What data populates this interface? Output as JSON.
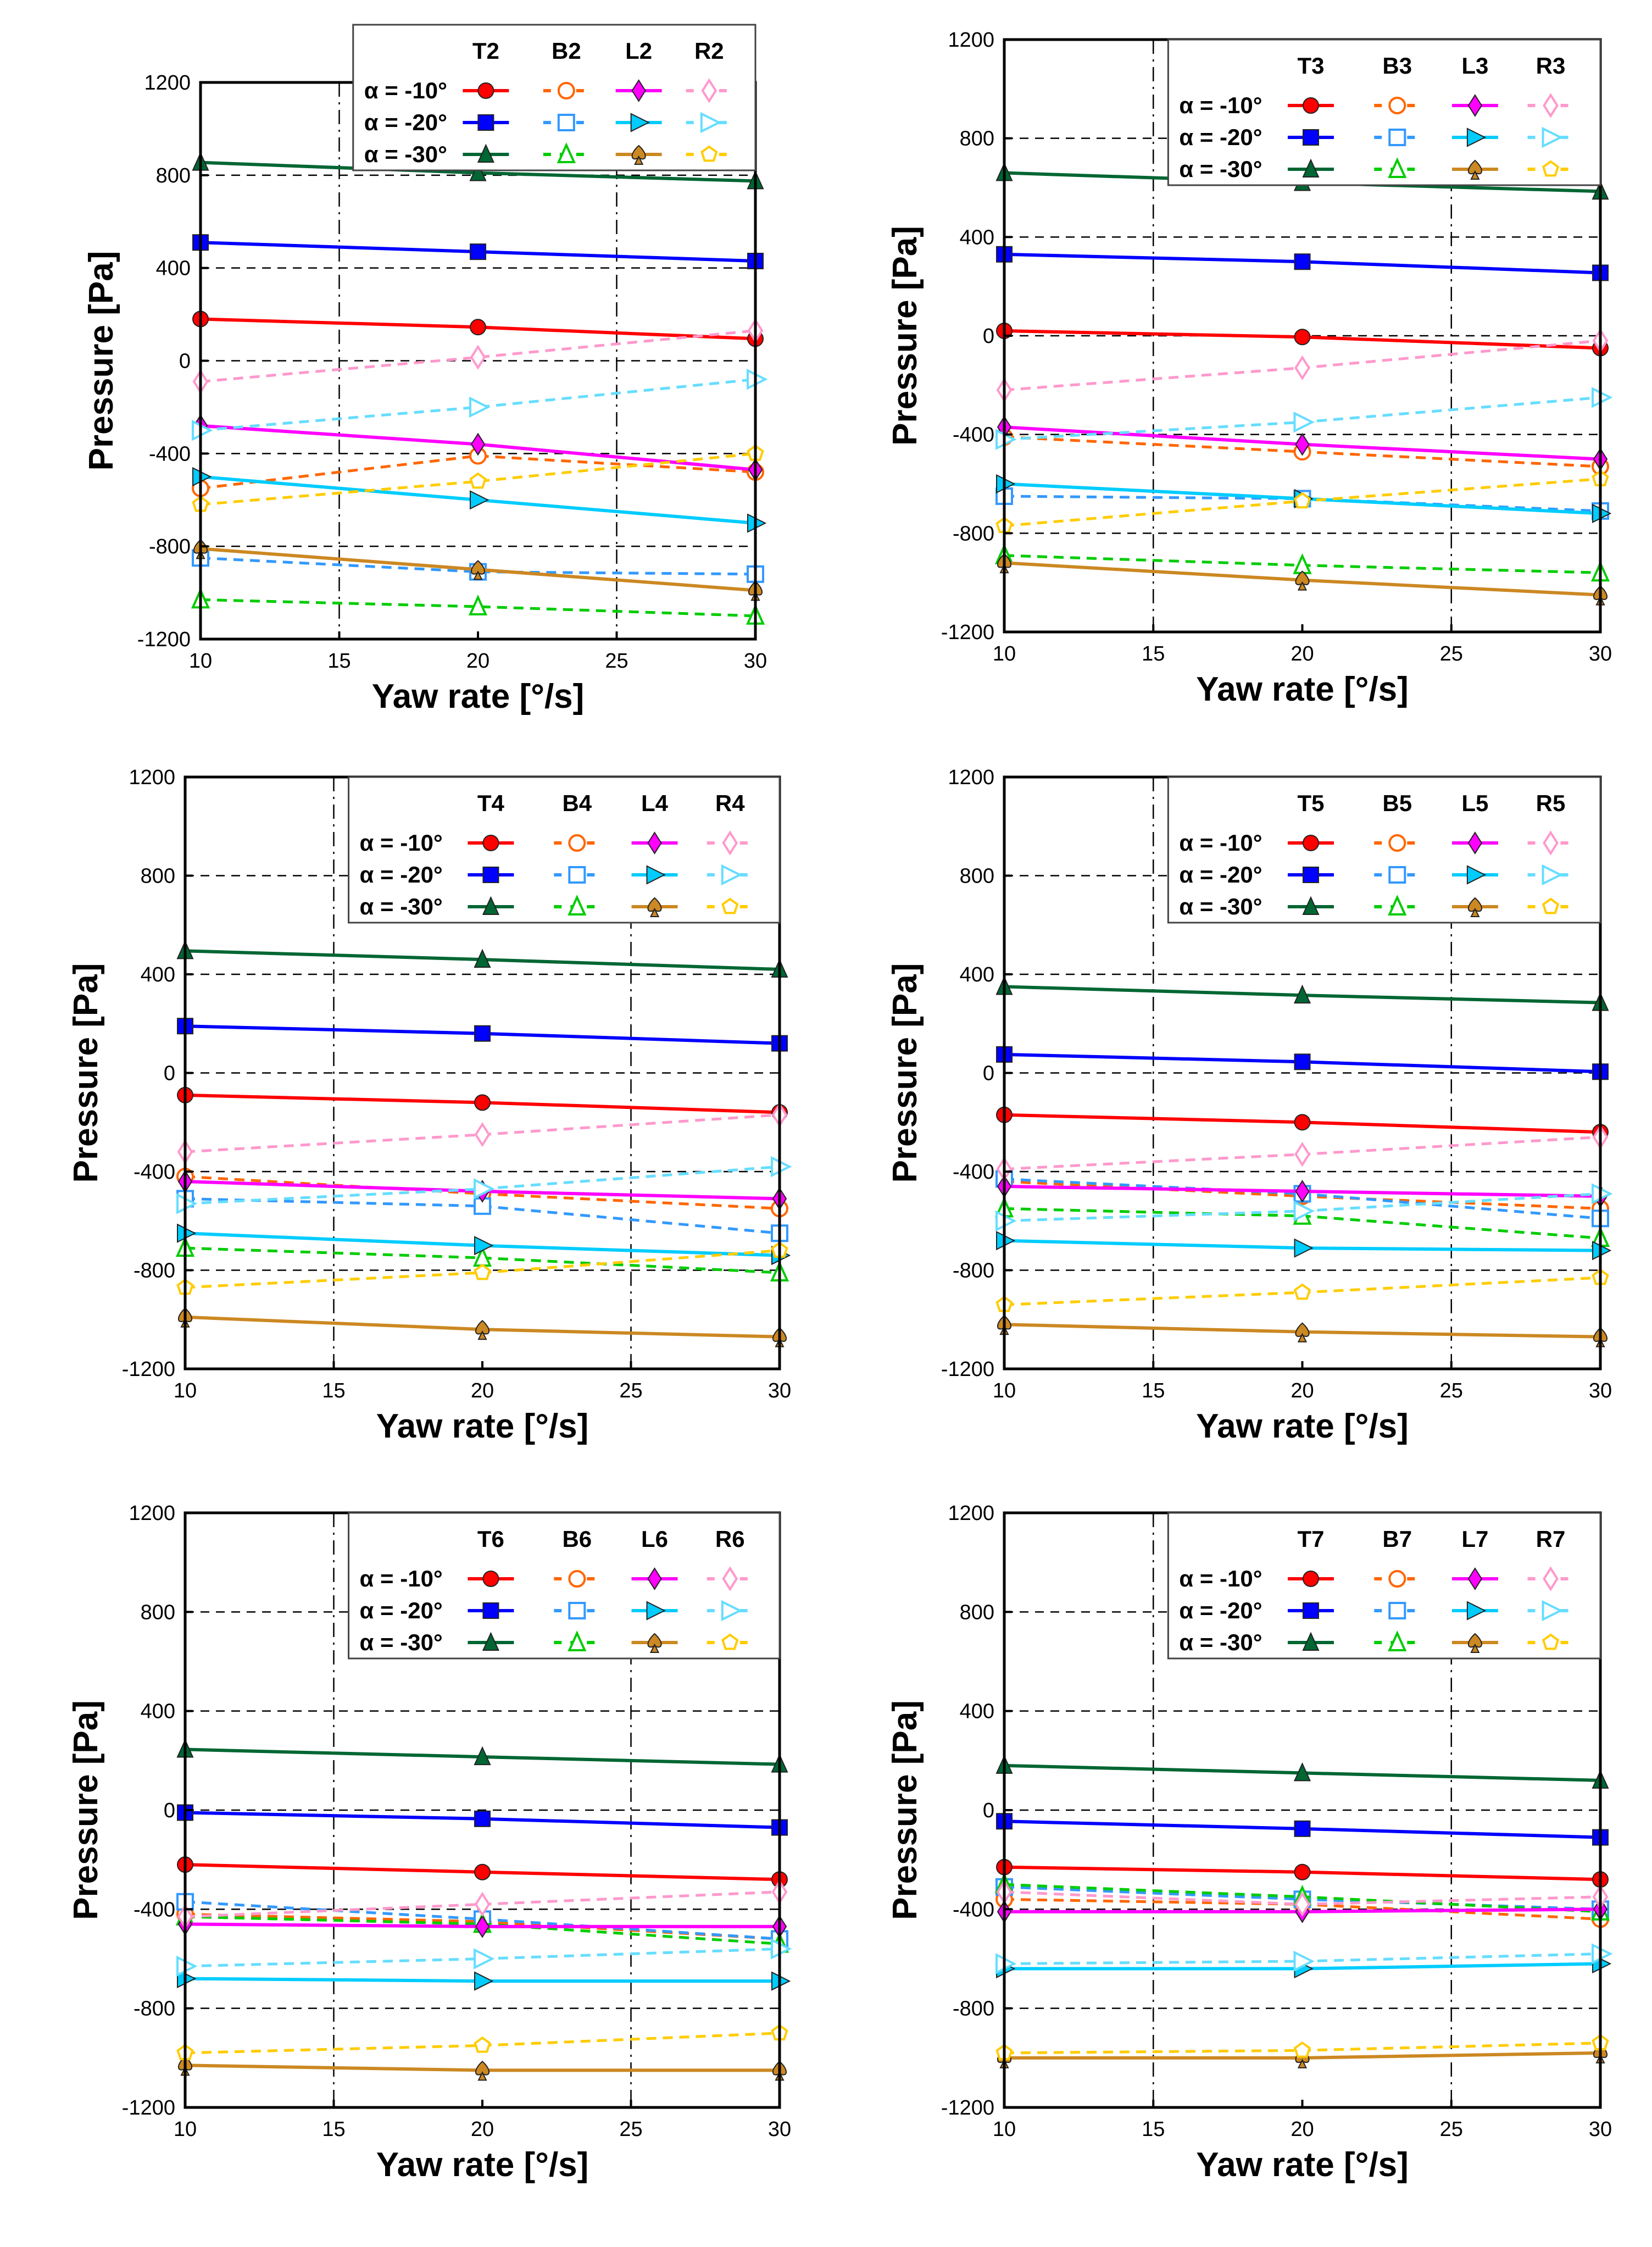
{
  "series_styles": {
    "T": {
      "colors": [
        "#ff0000",
        "#0000ff",
        "#006633"
      ],
      "markers": [
        "circle",
        "square",
        "triangle"
      ],
      "dash": false,
      "filled": true
    },
    "B": {
      "colors": [
        "#ff6600",
        "#3399ff",
        "#00cc00"
      ],
      "markers": [
        "circle",
        "square",
        "triangle"
      ],
      "dash": true,
      "filled": false
    },
    "L": {
      "colors": [
        "#ff00ff",
        "#00ccff",
        "#cc8822"
      ],
      "markers": [
        "diamond",
        "right-triangle",
        "spade"
      ],
      "dash": false,
      "filled": true
    },
    "R": {
      "colors": [
        "#ff99cc",
        "#66ddff",
        "#ffcc00"
      ],
      "markers": [
        "diamond",
        "right-triangle",
        "pentagon"
      ],
      "dash": true,
      "filled": false
    }
  },
  "chart_data": [
    {
      "type": "line",
      "xlabel": "Yaw rate [°/s]",
      "ylabel": "Pressure [Pa]",
      "xlim": [
        10,
        30
      ],
      "ylim": [
        -1200,
        1200
      ],
      "xticks": [
        "10",
        "15",
        "20",
        "25",
        "30"
      ],
      "yticks": [
        "1200",
        "800",
        "400",
        "0",
        "-400",
        "-800",
        "-1200"
      ],
      "x": [
        10,
        20,
        30
      ],
      "legend_rows": [
        "α = -10°",
        "α = -20°",
        "α = -30°"
      ],
      "legend_cols": [
        "T2",
        "B2",
        "L2",
        "R2"
      ],
      "legend_position": "top-right",
      "series": [
        {
          "name": "T2 α=-10°",
          "values": [
            180,
            145,
            95
          ]
        },
        {
          "name": "T2 α=-20°",
          "values": [
            510,
            470,
            430
          ]
        },
        {
          "name": "T2 α=-30°",
          "values": [
            855,
            810,
            775
          ]
        },
        {
          "name": "B2 α=-10°",
          "values": [
            -550,
            -410,
            -480
          ]
        },
        {
          "name": "B2 α=-20°",
          "values": [
            -850,
            -910,
            -920
          ]
        },
        {
          "name": "B2 α=-30°",
          "values": [
            -1030,
            -1060,
            -1100
          ]
        },
        {
          "name": "L2 α=-10°",
          "values": [
            -280,
            -360,
            -470
          ]
        },
        {
          "name": "L2 α=-20°",
          "values": [
            -500,
            -600,
            -700
          ]
        },
        {
          "name": "L2 α=-30°",
          "values": [
            -810,
            -900,
            -990
          ]
        },
        {
          "name": "R2 α=-10°",
          "values": [
            -90,
            15,
            130
          ]
        },
        {
          "name": "R2 α=-20°",
          "values": [
            -300,
            -200,
            -80
          ]
        },
        {
          "name": "R2 α=-30°",
          "values": [
            -620,
            -520,
            -400
          ]
        }
      ]
    },
    {
      "type": "line",
      "xlabel": "Yaw rate [°/s]",
      "ylabel": "Pressure [Pa]",
      "xlim": [
        10,
        30
      ],
      "ylim": [
        -1200,
        1200
      ],
      "xticks": [
        "10",
        "15",
        "20",
        "25",
        "30"
      ],
      "yticks": [
        "1200",
        "800",
        "400",
        "0",
        "-400",
        "-800",
        "-1200"
      ],
      "x": [
        10,
        20,
        30
      ],
      "legend_rows": [
        "α = -10°",
        "α = -20°",
        "α = -30°"
      ],
      "legend_cols": [
        "T3",
        "B3",
        "L3",
        "R3"
      ],
      "legend_position": "top-right",
      "series": [
        {
          "name": "T3 α=-10°",
          "values": [
            20,
            -5,
            -50
          ]
        },
        {
          "name": "T3 α=-20°",
          "values": [
            330,
            300,
            255
          ]
        },
        {
          "name": "T3 α=-30°",
          "values": [
            660,
            620,
            585
          ]
        },
        {
          "name": "B3 α=-10°",
          "values": [
            -410,
            -470,
            -530
          ]
        },
        {
          "name": "B3 α=-20°",
          "values": [
            -650,
            -660,
            -710
          ]
        },
        {
          "name": "B3 α=-30°",
          "values": [
            -890,
            -930,
            -960
          ]
        },
        {
          "name": "L3 α=-10°",
          "values": [
            -370,
            -440,
            -500
          ]
        },
        {
          "name": "L3 α=-20°",
          "values": [
            -600,
            -660,
            -720
          ]
        },
        {
          "name": "L3 α=-30°",
          "values": [
            -920,
            -990,
            -1050
          ]
        },
        {
          "name": "R3 α=-10°",
          "values": [
            -220,
            -130,
            -20
          ]
        },
        {
          "name": "R3 α=-20°",
          "values": [
            -420,
            -350,
            -250
          ]
        },
        {
          "name": "R3 α=-30°",
          "values": [
            -770,
            -670,
            -580
          ]
        }
      ]
    },
    {
      "type": "line",
      "xlabel": "Yaw rate [°/s]",
      "ylabel": "Pressure [Pa]",
      "xlim": [
        10,
        30
      ],
      "ylim": [
        -1200,
        1200
      ],
      "xticks": [
        "10",
        "15",
        "20",
        "25",
        "30"
      ],
      "yticks": [
        "1200",
        "800",
        "400",
        "0",
        "-400",
        "-800",
        "-1200"
      ],
      "x": [
        10,
        20,
        30
      ],
      "legend_rows": [
        "α = -10°",
        "α = -20°",
        "α = -30°"
      ],
      "legend_cols": [
        "T4",
        "B4",
        "L4",
        "R4"
      ],
      "legend_position": "top-right",
      "series": [
        {
          "name": "T4 α=-10°",
          "values": [
            -90,
            -120,
            -160
          ]
        },
        {
          "name": "T4 α=-20°",
          "values": [
            190,
            160,
            120
          ]
        },
        {
          "name": "T4 α=-30°",
          "values": [
            495,
            460,
            420
          ]
        },
        {
          "name": "B4 α=-10°",
          "values": [
            -420,
            -490,
            -550
          ]
        },
        {
          "name": "B4 α=-20°",
          "values": [
            -510,
            -540,
            -650
          ]
        },
        {
          "name": "B4 α=-30°",
          "values": [
            -710,
            -750,
            -810
          ]
        },
        {
          "name": "L4 α=-10°",
          "values": [
            -440,
            -480,
            -510
          ]
        },
        {
          "name": "L4 α=-20°",
          "values": [
            -650,
            -700,
            -740
          ]
        },
        {
          "name": "L4 α=-30°",
          "values": [
            -990,
            -1040,
            -1070
          ]
        },
        {
          "name": "R4 α=-10°",
          "values": [
            -320,
            -250,
            -170
          ]
        },
        {
          "name": "R4 α=-20°",
          "values": [
            -530,
            -470,
            -380
          ]
        },
        {
          "name": "R4 α=-30°",
          "values": [
            -870,
            -810,
            -720
          ]
        }
      ]
    },
    {
      "type": "line",
      "xlabel": "Yaw rate [°/s]",
      "ylabel": "Pressure [Pa]",
      "xlim": [
        10,
        30
      ],
      "ylim": [
        -1200,
        1200
      ],
      "xticks": [
        "10",
        "15",
        "20",
        "25",
        "30"
      ],
      "yticks": [
        "1200",
        "800",
        "400",
        "0",
        "-400",
        "-800",
        "-1200"
      ],
      "x": [
        10,
        20,
        30
      ],
      "legend_rows": [
        "α = -10°",
        "α = -20°",
        "α = -30°"
      ],
      "legend_cols": [
        "T5",
        "B5",
        "L5",
        "R5"
      ],
      "legend_position": "top-right",
      "series": [
        {
          "name": "T5 α=-10°",
          "values": [
            -170,
            -200,
            -240
          ]
        },
        {
          "name": "T5 α=-20°",
          "values": [
            75,
            45,
            5
          ]
        },
        {
          "name": "T5 α=-30°",
          "values": [
            350,
            315,
            285
          ]
        },
        {
          "name": "B5 α=-10°",
          "values": [
            -440,
            -500,
            -550
          ]
        },
        {
          "name": "B5 α=-20°",
          "values": [
            -430,
            -490,
            -590
          ]
        },
        {
          "name": "B5 α=-30°",
          "values": [
            -550,
            -580,
            -670
          ]
        },
        {
          "name": "L5 α=-10°",
          "values": [
            -460,
            -480,
            -500
          ]
        },
        {
          "name": "L5 α=-20°",
          "values": [
            -680,
            -710,
            -720
          ]
        },
        {
          "name": "L5 α=-30°",
          "values": [
            -1020,
            -1050,
            -1070
          ]
        },
        {
          "name": "R5 α=-10°",
          "values": [
            -390,
            -330,
            -260
          ]
        },
        {
          "name": "R5 α=-20°",
          "values": [
            -600,
            -560,
            -490
          ]
        },
        {
          "name": "R5 α=-30°",
          "values": [
            -940,
            -890,
            -830
          ]
        }
      ]
    },
    {
      "type": "line",
      "xlabel": "Yaw rate [°/s]",
      "ylabel": "Pressure [Pa]",
      "xlim": [
        10,
        30
      ],
      "ylim": [
        -1200,
        1200
      ],
      "xticks": [
        "10",
        "15",
        "20",
        "25",
        "30"
      ],
      "yticks": [
        "1200",
        "800",
        "400",
        "0",
        "-400",
        "-800",
        "-1200"
      ],
      "x": [
        10,
        20,
        30
      ],
      "legend_rows": [
        "α = -10°",
        "α = -20°",
        "α = -30°"
      ],
      "legend_cols": [
        "T6",
        "B6",
        "L6",
        "R6"
      ],
      "legend_position": "top-right",
      "series": [
        {
          "name": "T6 α=-10°",
          "values": [
            -220,
            -250,
            -280
          ]
        },
        {
          "name": "T6 α=-20°",
          "values": [
            -10,
            -35,
            -70
          ]
        },
        {
          "name": "T6 α=-30°",
          "values": [
            245,
            215,
            185
          ]
        },
        {
          "name": "B6 α=-10°",
          "values": [
            -420,
            -450,
            -520
          ]
        },
        {
          "name": "B6 α=-20°",
          "values": [
            -370,
            -440,
            -520
          ]
        },
        {
          "name": "B6 α=-30°",
          "values": [
            -430,
            -460,
            -540
          ]
        },
        {
          "name": "L6 α=-10°",
          "values": [
            -460,
            -470,
            -470
          ]
        },
        {
          "name": "L6 α=-20°",
          "values": [
            -680,
            -690,
            -690
          ]
        },
        {
          "name": "L6 α=-30°",
          "values": [
            -1030,
            -1050,
            -1050
          ]
        },
        {
          "name": "R6 α=-10°",
          "values": [
            -430,
            -380,
            -330
          ]
        },
        {
          "name": "R6 α=-20°",
          "values": [
            -630,
            -600,
            -560
          ]
        },
        {
          "name": "R6 α=-30°",
          "values": [
            -980,
            -950,
            -900
          ]
        }
      ]
    },
    {
      "type": "line",
      "xlabel": "Yaw rate [°/s]",
      "ylabel": "Pressure [Pa]",
      "xlim": [
        10,
        30
      ],
      "ylim": [
        -1200,
        1200
      ],
      "xticks": [
        "10",
        "15",
        "20",
        "25",
        "30"
      ],
      "yticks": [
        "1200",
        "800",
        "400",
        "0",
        "-400",
        "-800",
        "-1200"
      ],
      "x": [
        10,
        20,
        30
      ],
      "legend_rows": [
        "α = -10°",
        "α = -20°",
        "α = -30°"
      ],
      "legend_cols": [
        "T7",
        "B7",
        "L7",
        "R7"
      ],
      "legend_position": "top-right",
      "series": [
        {
          "name": "T7 α=-10°",
          "values": [
            -230,
            -250,
            -280
          ]
        },
        {
          "name": "T7 α=-20°",
          "values": [
            -45,
            -75,
            -110
          ]
        },
        {
          "name": "T7 α=-30°",
          "values": [
            180,
            150,
            120
          ]
        },
        {
          "name": "B7 α=-10°",
          "values": [
            -360,
            -380,
            -440
          ]
        },
        {
          "name": "B7 α=-20°",
          "values": [
            -310,
            -360,
            -400
          ]
        },
        {
          "name": "B7 α=-30°",
          "values": [
            -300,
            -350,
            -410
          ]
        },
        {
          "name": "L7 α=-10°",
          "values": [
            -410,
            -410,
            -400
          ]
        },
        {
          "name": "L7 α=-20°",
          "values": [
            -640,
            -640,
            -620
          ]
        },
        {
          "name": "L7 α=-30°",
          "values": [
            -1000,
            -1000,
            -980
          ]
        },
        {
          "name": "R7 α=-10°",
          "values": [
            -330,
            -380,
            -350
          ]
        },
        {
          "name": "R7 α=-20°",
          "values": [
            -620,
            -610,
            -580
          ]
        },
        {
          "name": "R7 α=-30°",
          "values": [
            -980,
            -970,
            -940
          ]
        }
      ]
    }
  ]
}
